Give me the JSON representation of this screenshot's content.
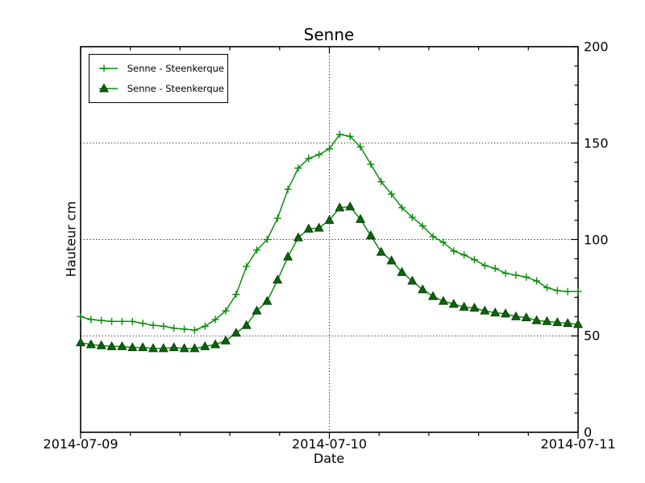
{
  "chart_data": {
    "type": "line",
    "title": "Senne",
    "xlabel": "Date",
    "ylabel": "Hauteur cm",
    "x_unit": "hours since 2014-07-09 00:00",
    "xlim_hours": [
      0,
      48
    ],
    "ylim": [
      0,
      200
    ],
    "x_ticks": [
      {
        "hour": 0,
        "label": "2014-07-09"
      },
      {
        "hour": 24,
        "label": "2014-07-10"
      },
      {
        "hour": 48,
        "label": "2014-07-11"
      }
    ],
    "y_ticks": [
      0,
      50,
      100,
      150,
      200
    ],
    "minor_x_step_hours": 4.8,
    "minor_y_step": 10,
    "grid": {
      "style": "dotted",
      "h_lines": [
        50,
        100,
        150
      ],
      "v_lines_hours": [
        24
      ]
    },
    "legend_position": "upper-left",
    "series": [
      {
        "name": "Senne - Steenkerque",
        "marker": "plus",
        "color": "#0a8c0a",
        "values": [
          60,
          58.5,
          58,
          57.5,
          57.5,
          57.5,
          56.5,
          55.5,
          55,
          54,
          53.5,
          53,
          55,
          58.5,
          63,
          71.5,
          86,
          94.5,
          100,
          111,
          126,
          137,
          142,
          144,
          147,
          154.5,
          153.5,
          148,
          139,
          130,
          123.5,
          116.5,
          111.5,
          107,
          101.5,
          98.5,
          94,
          92,
          89.5,
          86.5,
          85,
          82.5,
          81.5,
          80.5,
          78.5,
          75,
          73.5,
          73,
          73
        ]
      },
      {
        "name": "Senne - Steenkerque",
        "marker": "triangle",
        "color": "#0a8c0a",
        "marker_fill": "#0b650b",
        "marker_edge": "#063f06",
        "values": [
          46.5,
          45.5,
          45,
          44.5,
          44.5,
          44,
          44,
          43.5,
          43.5,
          44,
          43.5,
          43.5,
          44.5,
          45.5,
          47.5,
          51.5,
          55.5,
          63,
          68,
          79,
          91,
          101,
          105.5,
          106,
          110,
          116.5,
          117,
          110.5,
          102,
          93.5,
          89,
          83,
          78.5,
          74,
          70.5,
          68,
          66.5,
          65,
          64.5,
          63,
          62,
          61.5,
          60,
          59.5,
          58,
          57.5,
          57,
          56.5,
          56
        ]
      }
    ]
  }
}
